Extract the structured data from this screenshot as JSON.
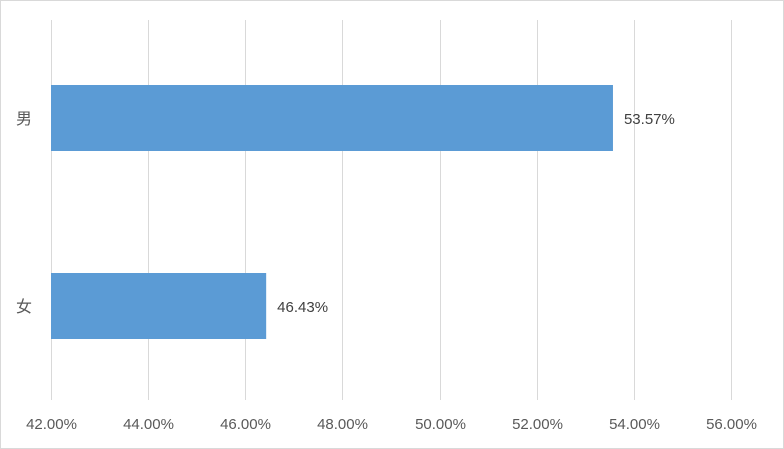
{
  "chart_data": {
    "type": "bar",
    "orientation": "horizontal",
    "categories": [
      "男",
      "女"
    ],
    "values": [
      53.57,
      46.43
    ],
    "data_labels": [
      "53.57%",
      "46.43%"
    ],
    "x_ticks": [
      42,
      44,
      46,
      48,
      50,
      52,
      54,
      56
    ],
    "x_tick_labels": [
      "42.00%",
      "44.00%",
      "46.00%",
      "48.00%",
      "50.00%",
      "52.00%",
      "54.00%",
      "56.00%"
    ],
    "xlim": [
      42,
      56
    ],
    "title": "",
    "xlabel": "",
    "ylabel": "",
    "grid": "vertical",
    "legend": "none",
    "bar_color": "#5b9bd5",
    "grid_color": "#d9d9d9"
  }
}
